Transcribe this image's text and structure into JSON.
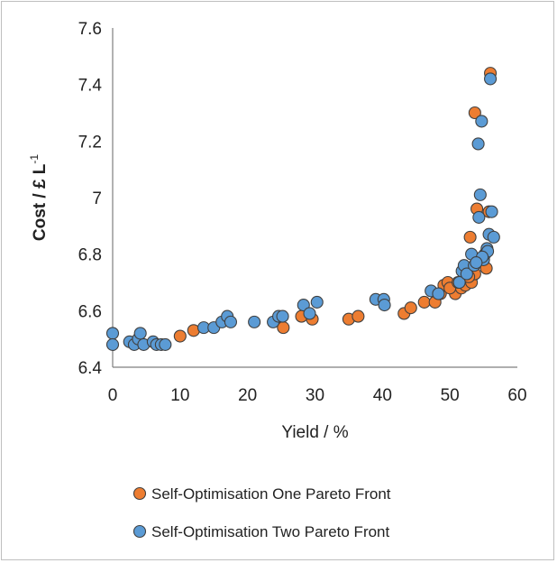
{
  "chart_data": {
    "type": "scatter",
    "xlabel": "Yield / %",
    "ylabel": "Cost / £ L",
    "ylabel_superscript": "-1",
    "xlim": [
      0,
      60
    ],
    "ylim": [
      6.4,
      7.6
    ],
    "x_ticks": [
      "0",
      "10",
      "20",
      "30",
      "40",
      "50",
      "60"
    ],
    "y_ticks": [
      "6.4",
      "6.6",
      "6.8",
      "7",
      "7.2",
      "7.4",
      "7.6"
    ],
    "grid": false,
    "legend_position": "bottom",
    "series": [
      {
        "name": "Self-Optimisation One Pareto Front",
        "color": "#ED7D31",
        "points": [
          [
            10.0,
            6.51
          ],
          [
            12.0,
            6.53
          ],
          [
            25.3,
            6.54
          ],
          [
            28.0,
            6.58
          ],
          [
            29.6,
            6.57
          ],
          [
            35.0,
            6.57
          ],
          [
            36.4,
            6.58
          ],
          [
            43.2,
            6.59
          ],
          [
            44.2,
            6.61
          ],
          [
            46.2,
            6.63
          ],
          [
            47.8,
            6.63
          ],
          [
            48.6,
            6.66
          ],
          [
            49.1,
            6.69
          ],
          [
            49.7,
            6.7
          ],
          [
            50.8,
            6.66
          ],
          [
            51.7,
            6.68
          ],
          [
            52.3,
            6.69
          ],
          [
            53.2,
            6.7
          ],
          [
            53.7,
            6.73
          ],
          [
            53.0,
            6.86
          ],
          [
            54.0,
            6.96
          ],
          [
            53.7,
            7.3
          ],
          [
            55.4,
            6.75
          ],
          [
            55.8,
            6.95
          ],
          [
            56.0,
            7.44
          ],
          [
            50.0,
            6.68
          ],
          [
            51.2,
            6.7
          ],
          [
            52.8,
            6.72
          ]
        ]
      },
      {
        "name": "Self-Optimisation Two Pareto Front",
        "color": "#5B9BD5",
        "points": [
          [
            0.0,
            6.52
          ],
          [
            0.0,
            6.48
          ],
          [
            2.5,
            6.49
          ],
          [
            3.2,
            6.48
          ],
          [
            3.8,
            6.5
          ],
          [
            4.1,
            6.52
          ],
          [
            4.6,
            6.48
          ],
          [
            6.0,
            6.49
          ],
          [
            6.5,
            6.48
          ],
          [
            7.2,
            6.48
          ],
          [
            7.8,
            6.48
          ],
          [
            13.5,
            6.54
          ],
          [
            15.0,
            6.54
          ],
          [
            16.2,
            6.56
          ],
          [
            17.0,
            6.58
          ],
          [
            17.5,
            6.56
          ],
          [
            21.0,
            6.56
          ],
          [
            23.8,
            6.56
          ],
          [
            24.6,
            6.58
          ],
          [
            25.2,
            6.58
          ],
          [
            28.3,
            6.62
          ],
          [
            29.2,
            6.59
          ],
          [
            30.3,
            6.63
          ],
          [
            39.0,
            6.64
          ],
          [
            40.2,
            6.64
          ],
          [
            40.3,
            6.62
          ],
          [
            47.2,
            6.67
          ],
          [
            48.3,
            6.66
          ],
          [
            51.4,
            6.7
          ],
          [
            51.8,
            6.74
          ],
          [
            52.1,
            6.76
          ],
          [
            52.5,
            6.73
          ],
          [
            53.2,
            6.8
          ],
          [
            53.6,
            6.76
          ],
          [
            54.2,
            7.19
          ],
          [
            54.3,
            6.93
          ],
          [
            54.5,
            7.01
          ],
          [
            54.7,
            7.27
          ],
          [
            55.0,
            6.78
          ],
          [
            55.2,
            6.8
          ],
          [
            55.5,
            6.82
          ],
          [
            55.6,
            6.81
          ],
          [
            55.8,
            6.87
          ],
          [
            56.0,
            7.42
          ],
          [
            56.2,
            6.95
          ],
          [
            56.5,
            6.86
          ],
          [
            54.8,
            6.79
          ],
          [
            53.9,
            6.77
          ]
        ]
      }
    ]
  }
}
